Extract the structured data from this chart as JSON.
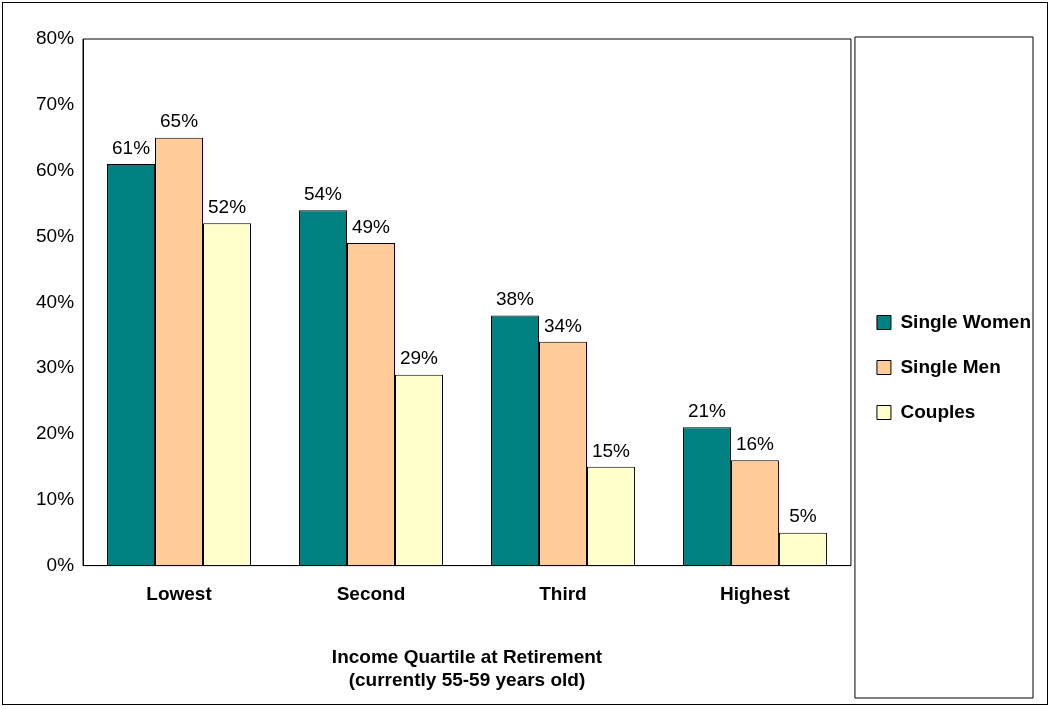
{
  "chart_data": {
    "type": "bar",
    "xlabel": "Income Quartile at Retirement\n(currently 55-59 years old)",
    "categories": [
      "Lowest",
      "Second",
      "Third",
      "Highest"
    ],
    "series": [
      {
        "name": "Single Women",
        "color": "#008080",
        "values": [
          61,
          54,
          38,
          21
        ]
      },
      {
        "name": "Single Men",
        "color": "#ffcc99",
        "values": [
          65,
          49,
          34,
          16
        ]
      },
      {
        "name": "Couples",
        "color": "#ffffcc",
        "values": [
          52,
          29,
          15,
          5
        ]
      }
    ],
    "ylim": [
      0,
      80
    ],
    "yticks": [
      {
        "value": 0,
        "label": "0%"
      },
      {
        "value": 10,
        "label": "10%"
      },
      {
        "value": 20,
        "label": "20%"
      },
      {
        "value": 30,
        "label": "30%"
      },
      {
        "value": 40,
        "label": "40%"
      },
      {
        "value": 50,
        "label": "50%"
      },
      {
        "value": 60,
        "label": "60%"
      },
      {
        "value": 70,
        "label": "70%"
      },
      {
        "value": 80,
        "label": "80%"
      }
    ],
    "value_labels": [
      [
        "61%",
        "54%",
        "38%",
        "21%"
      ],
      [
        "65%",
        "49%",
        "34%",
        "16%"
      ],
      [
        "52%",
        "29%",
        "15%",
        "5%"
      ]
    ],
    "grid": false,
    "legend": "right"
  }
}
